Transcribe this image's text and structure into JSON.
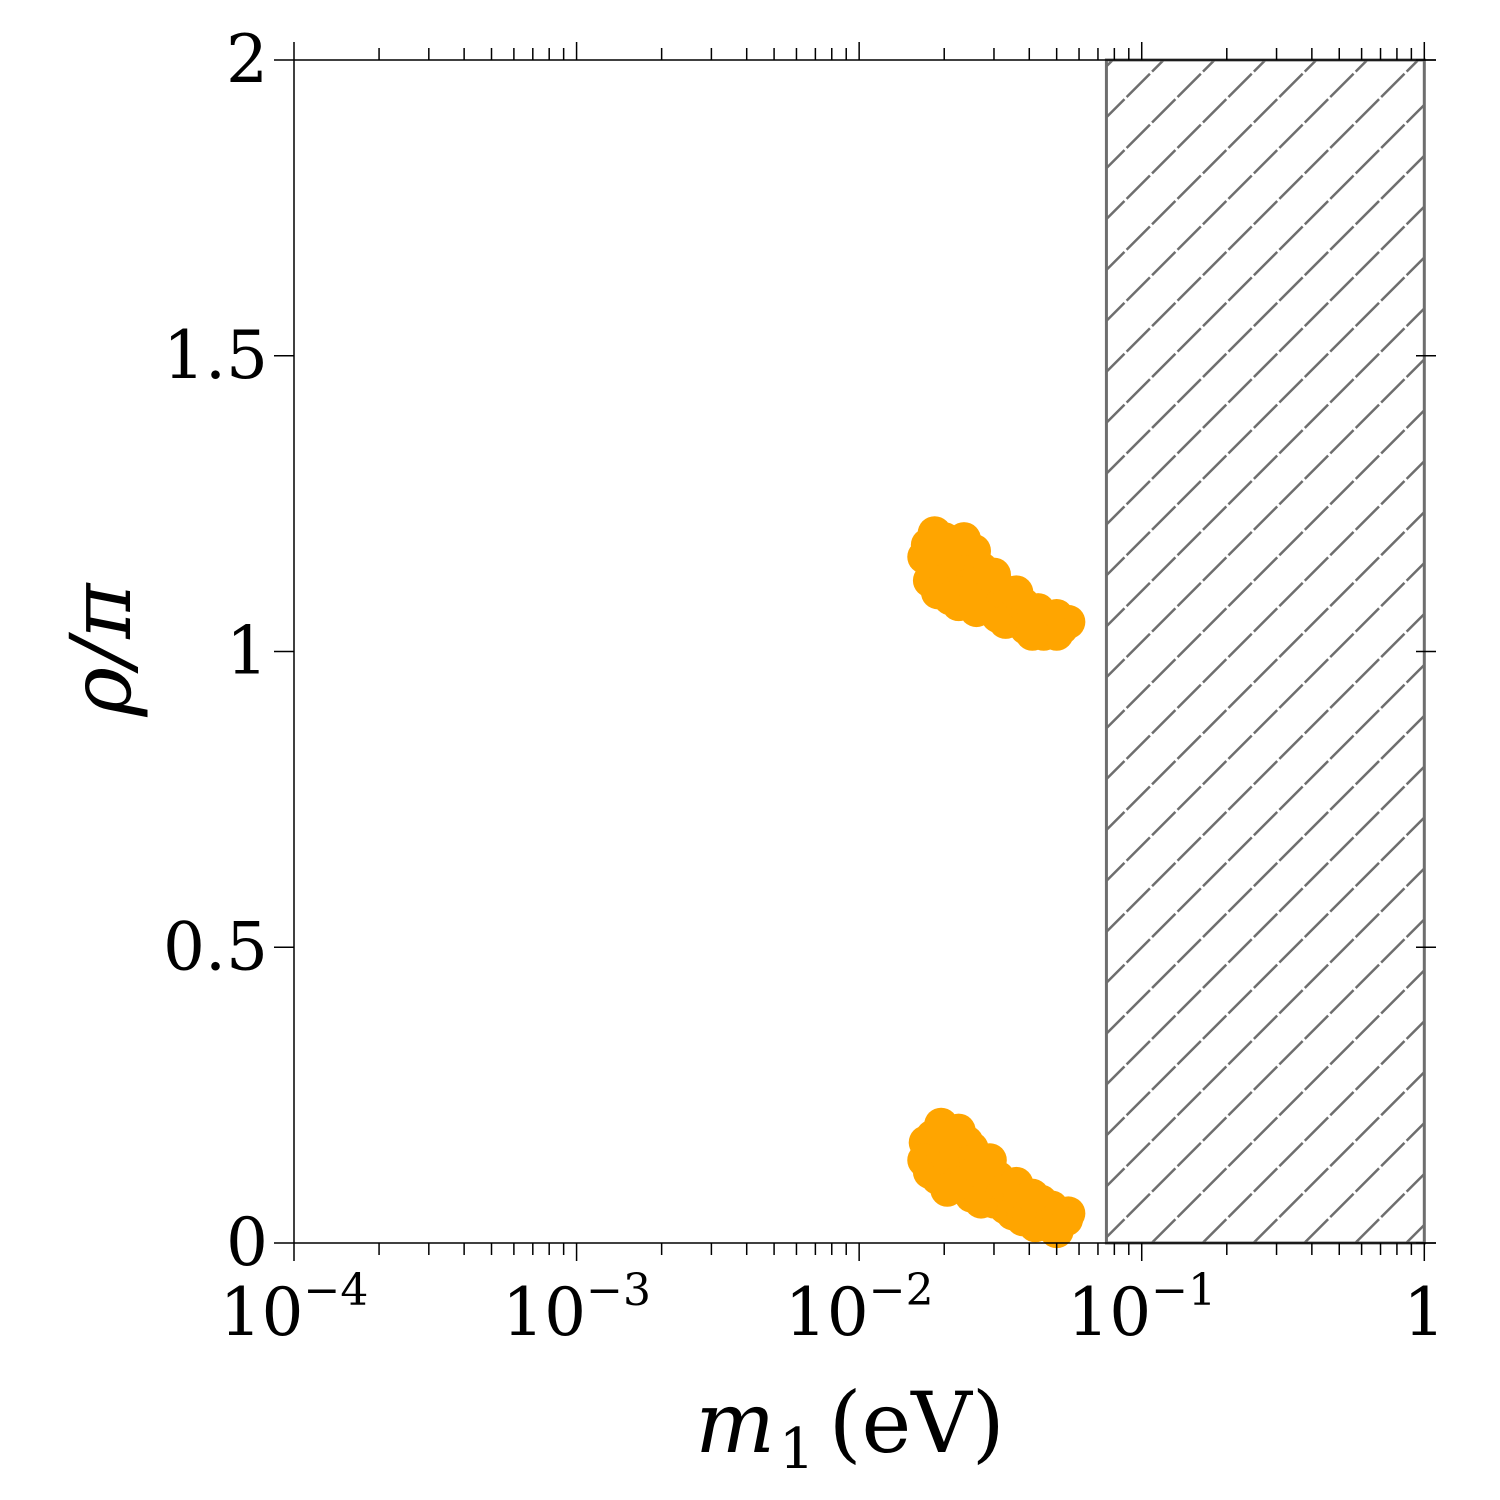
{
  "chart_data": {
    "type": "scatter",
    "x_scale": "log",
    "xlim": [
      0.0001,
      1.1
    ],
    "ylim": [
      0,
      2
    ],
    "x_ticks": [
      {
        "value": 0.0001,
        "base": "10",
        "exp": "−4"
      },
      {
        "value": 0.001,
        "base": "10",
        "exp": "−3"
      },
      {
        "value": 0.01,
        "base": "10",
        "exp": "−2"
      },
      {
        "value": 0.1,
        "base": "10",
        "exp": "−1"
      },
      {
        "value": 1,
        "base": "1",
        "exp": ""
      }
    ],
    "y_ticks": [
      {
        "value": 0,
        "label": "0"
      },
      {
        "value": 0.5,
        "label": "0.5"
      },
      {
        "value": 1,
        "label": "1"
      },
      {
        "value": 1.5,
        "label": "1.5"
      },
      {
        "value": 2,
        "label": "2"
      }
    ],
    "xlabel": {
      "symbol": "m",
      "subscript": "1",
      "unit": "(eV)"
    },
    "ylabel": "ρ/π",
    "grid": false,
    "excluded_region": {
      "x_from": 0.075,
      "x_to": 1.0,
      "fill": "hatched",
      "color": "#6e6e6e"
    },
    "series": [
      {
        "color": "#FFA500",
        "points": [
          [
            0.0175,
            1.18
          ],
          [
            0.0185,
            1.2
          ],
          [
            0.019,
            1.17
          ],
          [
            0.02,
            1.19
          ],
          [
            0.021,
            1.16
          ],
          [
            0.0215,
            1.14
          ],
          [
            0.0195,
            1.13
          ],
          [
            0.018,
            1.15
          ],
          [
            0.017,
            1.16
          ],
          [
            0.0178,
            1.12
          ],
          [
            0.019,
            1.1
          ],
          [
            0.0205,
            1.12
          ],
          [
            0.022,
            1.18
          ],
          [
            0.023,
            1.15
          ],
          [
            0.0245,
            1.13
          ],
          [
            0.025,
            1.16
          ],
          [
            0.024,
            1.11
          ],
          [
            0.022,
            1.1
          ],
          [
            0.021,
            1.09
          ],
          [
            0.0225,
            1.08
          ],
          [
            0.026,
            1.1
          ],
          [
            0.027,
            1.14
          ],
          [
            0.0285,
            1.12
          ],
          [
            0.028,
            1.09
          ],
          [
            0.026,
            1.07
          ],
          [
            0.0295,
            1.07
          ],
          [
            0.031,
            1.11
          ],
          [
            0.032,
            1.08
          ],
          [
            0.031,
            1.06
          ],
          [
            0.034,
            1.09
          ],
          [
            0.035,
            1.06
          ],
          [
            0.033,
            1.05
          ],
          [
            0.037,
            1.05
          ],
          [
            0.038,
            1.08
          ],
          [
            0.04,
            1.06
          ],
          [
            0.039,
            1.04
          ],
          [
            0.042,
            1.04
          ],
          [
            0.044,
            1.06
          ],
          [
            0.046,
            1.05
          ],
          [
            0.045,
            1.03
          ],
          [
            0.048,
            1.04
          ],
          [
            0.05,
            1.06
          ],
          [
            0.052,
            1.04
          ],
          [
            0.055,
            1.05
          ],
          [
            0.043,
            1.07
          ],
          [
            0.036,
            1.1
          ],
          [
            0.03,
            1.13
          ],
          [
            0.0255,
            1.17
          ],
          [
            0.0235,
            1.19
          ],
          [
            0.05,
            1.03
          ],
          [
            0.041,
            1.03
          ],
          [
            0.0172,
            0.17
          ],
          [
            0.0182,
            0.18
          ],
          [
            0.0195,
            0.2
          ],
          [
            0.02,
            0.16
          ],
          [
            0.0185,
            0.15
          ],
          [
            0.017,
            0.14
          ],
          [
            0.0178,
            0.12
          ],
          [
            0.019,
            0.11
          ],
          [
            0.021,
            0.13
          ],
          [
            0.022,
            0.16
          ],
          [
            0.0215,
            0.18
          ],
          [
            0.023,
            0.14
          ],
          [
            0.024,
            0.11
          ],
          [
            0.022,
            0.1
          ],
          [
            0.0205,
            0.09
          ],
          [
            0.025,
            0.16
          ],
          [
            0.026,
            0.13
          ],
          [
            0.0265,
            0.1
          ],
          [
            0.025,
            0.08
          ],
          [
            0.027,
            0.07
          ],
          [
            0.028,
            0.12
          ],
          [
            0.029,
            0.09
          ],
          [
            0.03,
            0.07
          ],
          [
            0.031,
            0.11
          ],
          [
            0.032,
            0.08
          ],
          [
            0.033,
            0.06
          ],
          [
            0.034,
            0.09
          ],
          [
            0.035,
            0.05
          ],
          [
            0.037,
            0.07
          ],
          [
            0.038,
            0.04
          ],
          [
            0.039,
            0.06
          ],
          [
            0.04,
            0.05
          ],
          [
            0.042,
            0.03
          ],
          [
            0.043,
            0.06
          ],
          [
            0.045,
            0.04
          ],
          [
            0.047,
            0.03
          ],
          [
            0.049,
            0.05
          ],
          [
            0.051,
            0.04
          ],
          [
            0.054,
            0.04
          ],
          [
            0.055,
            0.05
          ],
          [
            0.048,
            0.06
          ],
          [
            0.036,
            0.1
          ],
          [
            0.029,
            0.14
          ],
          [
            0.024,
            0.17
          ],
          [
            0.0225,
            0.19
          ],
          [
            0.044,
            0.07
          ],
          [
            0.05,
            0.02
          ],
          [
            0.041,
            0.08
          ]
        ]
      }
    ]
  }
}
